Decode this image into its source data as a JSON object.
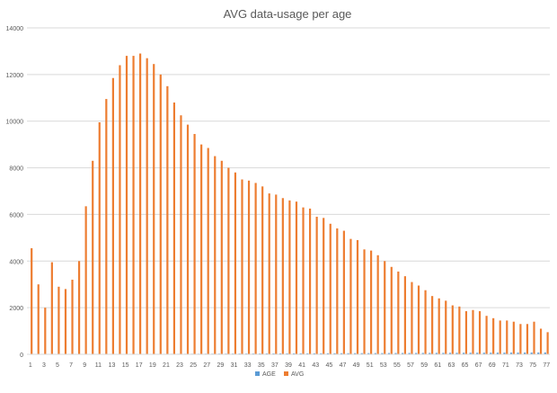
{
  "chart_data": {
    "type": "bar",
    "title": "AVG data-usage per age",
    "xlabel": "",
    "ylabel": "",
    "ylim": [
      0,
      14000
    ],
    "y_ticks": [
      "0",
      "2000",
      "4000",
      "6000",
      "8000",
      "10000",
      "12000",
      "14000"
    ],
    "grid": true,
    "legend_position": "bottom",
    "categories": [
      1,
      2,
      3,
      4,
      5,
      6,
      7,
      8,
      9,
      10,
      11,
      12,
      13,
      14,
      15,
      16,
      17,
      18,
      19,
      20,
      21,
      22,
      23,
      24,
      25,
      26,
      27,
      28,
      29,
      30,
      31,
      32,
      33,
      34,
      35,
      36,
      37,
      38,
      39,
      40,
      41,
      42,
      43,
      44,
      45,
      46,
      47,
      48,
      49,
      50,
      51,
      52,
      53,
      54,
      55,
      56,
      57,
      58,
      59,
      60,
      61,
      62,
      63,
      64,
      65,
      66,
      67,
      68,
      69,
      70,
      71,
      72,
      73,
      74,
      75,
      76,
      77
    ],
    "x_tick_labels": [
      "1",
      "3",
      "5",
      "7",
      "9",
      "11",
      "13",
      "15",
      "17",
      "19",
      "21",
      "23",
      "25",
      "27",
      "29",
      "31",
      "33",
      "35",
      "37",
      "39",
      "41",
      "43",
      "45",
      "47",
      "49",
      "51",
      "53",
      "55",
      "57",
      "59",
      "61",
      "63",
      "65",
      "67",
      "69",
      "71",
      "73",
      "75",
      "77"
    ],
    "series": [
      {
        "name": "AGE",
        "color": "#5B9BD5",
        "values": [
          1,
          2,
          3,
          4,
          5,
          6,
          7,
          8,
          9,
          10,
          11,
          12,
          13,
          14,
          15,
          16,
          17,
          18,
          19,
          20,
          21,
          22,
          23,
          24,
          25,
          26,
          27,
          28,
          29,
          30,
          31,
          32,
          33,
          34,
          35,
          36,
          37,
          38,
          39,
          40,
          41,
          42,
          43,
          44,
          45,
          46,
          47,
          48,
          49,
          50,
          51,
          52,
          53,
          54,
          55,
          56,
          57,
          58,
          59,
          60,
          61,
          62,
          63,
          64,
          65,
          66,
          67,
          68,
          69,
          70,
          71,
          72,
          73,
          74,
          75,
          76,
          77
        ]
      },
      {
        "name": "AVG",
        "color": "#ED7D31",
        "values": [
          4550,
          3000,
          2000,
          3950,
          2900,
          2800,
          3200,
          4000,
          6350,
          8300,
          9950,
          10950,
          11850,
          12400,
          12800,
          12800,
          12900,
          12700,
          12450,
          12000,
          11500,
          10800,
          10250,
          9850,
          9450,
          9000,
          8850,
          8500,
          8300,
          8000,
          7800,
          7500,
          7450,
          7350,
          7200,
          6900,
          6850,
          6700,
          6600,
          6550,
          6300,
          6250,
          5900,
          5850,
          5600,
          5400,
          5300,
          4950,
          4900,
          4500,
          4450,
          4250,
          4000,
          3750,
          3550,
          3350,
          3100,
          2950,
          2750,
          2500,
          2400,
          2300,
          2100,
          2050,
          1850,
          1900,
          1850,
          1650,
          1550,
          1450,
          1450,
          1400,
          1300,
          1300,
          1400,
          1100,
          950
        ]
      }
    ]
  }
}
